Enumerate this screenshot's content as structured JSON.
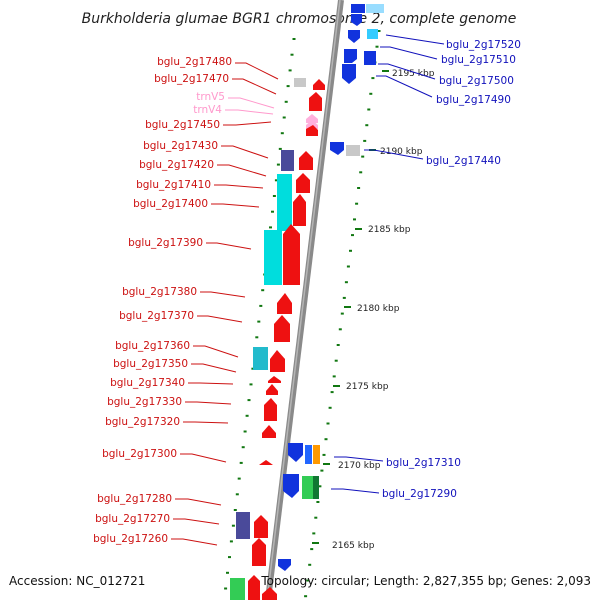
{
  "title": "Burkholderia glumae BGR1 chromosome 2, complete genome",
  "footer": {
    "accession": "Accession: NC_012721",
    "topology": "Topology: circular; Length: 2,827,355 bp; Genes: 2,093"
  },
  "colors": {
    "forward_cds": "#ee1111",
    "reverse_cds": "#1133dd",
    "forward_label": "#cc1111",
    "reverse_label": "#1111bb",
    "trna_label": "#ff99cc",
    "backbone": "#888888",
    "tick": "#117711"
  },
  "kbp_labels": [
    "2195 kbp",
    "2190 kbp",
    "2185 kbp",
    "2180 kbp",
    "2175 kbp",
    "2170 kbp",
    "2165 kbp"
  ],
  "forward_labels": [
    {
      "text": "bglu_2g17480",
      "kind": "cds"
    },
    {
      "text": "bglu_2g17470",
      "kind": "cds"
    },
    {
      "text": "trnV5",
      "kind": "trna"
    },
    {
      "text": "trnV4",
      "kind": "trna"
    },
    {
      "text": "bglu_2g17450",
      "kind": "cds"
    },
    {
      "text": "bglu_2g17430",
      "kind": "cds"
    },
    {
      "text": "bglu_2g17420",
      "kind": "cds"
    },
    {
      "text": "bglu_2g17410",
      "kind": "cds"
    },
    {
      "text": "bglu_2g17400",
      "kind": "cds"
    },
    {
      "text": "bglu_2g17390",
      "kind": "cds"
    },
    {
      "text": "bglu_2g17380",
      "kind": "cds"
    },
    {
      "text": "bglu_2g17370",
      "kind": "cds"
    },
    {
      "text": "bglu_2g17360",
      "kind": "cds"
    },
    {
      "text": "bglu_2g17350",
      "kind": "cds"
    },
    {
      "text": "bglu_2g17340",
      "kind": "cds"
    },
    {
      "text": "bglu_2g17330",
      "kind": "cds"
    },
    {
      "text": "bglu_2g17320",
      "kind": "cds"
    },
    {
      "text": "bglu_2g17300",
      "kind": "cds"
    },
    {
      "text": "bglu_2g17280",
      "kind": "cds"
    },
    {
      "text": "bglu_2g17270",
      "kind": "cds"
    },
    {
      "text": "bglu_2g17260",
      "kind": "cds"
    }
  ],
  "reverse_labels": [
    {
      "text": "bglu_2g17520"
    },
    {
      "text": "bglu_2g17510"
    },
    {
      "text": "bglu_2g17500"
    },
    {
      "text": "bglu_2g17490"
    },
    {
      "text": "bglu_2g17440"
    },
    {
      "text": "bglu_2g17310"
    },
    {
      "text": "bglu_2g17290"
    }
  ]
}
